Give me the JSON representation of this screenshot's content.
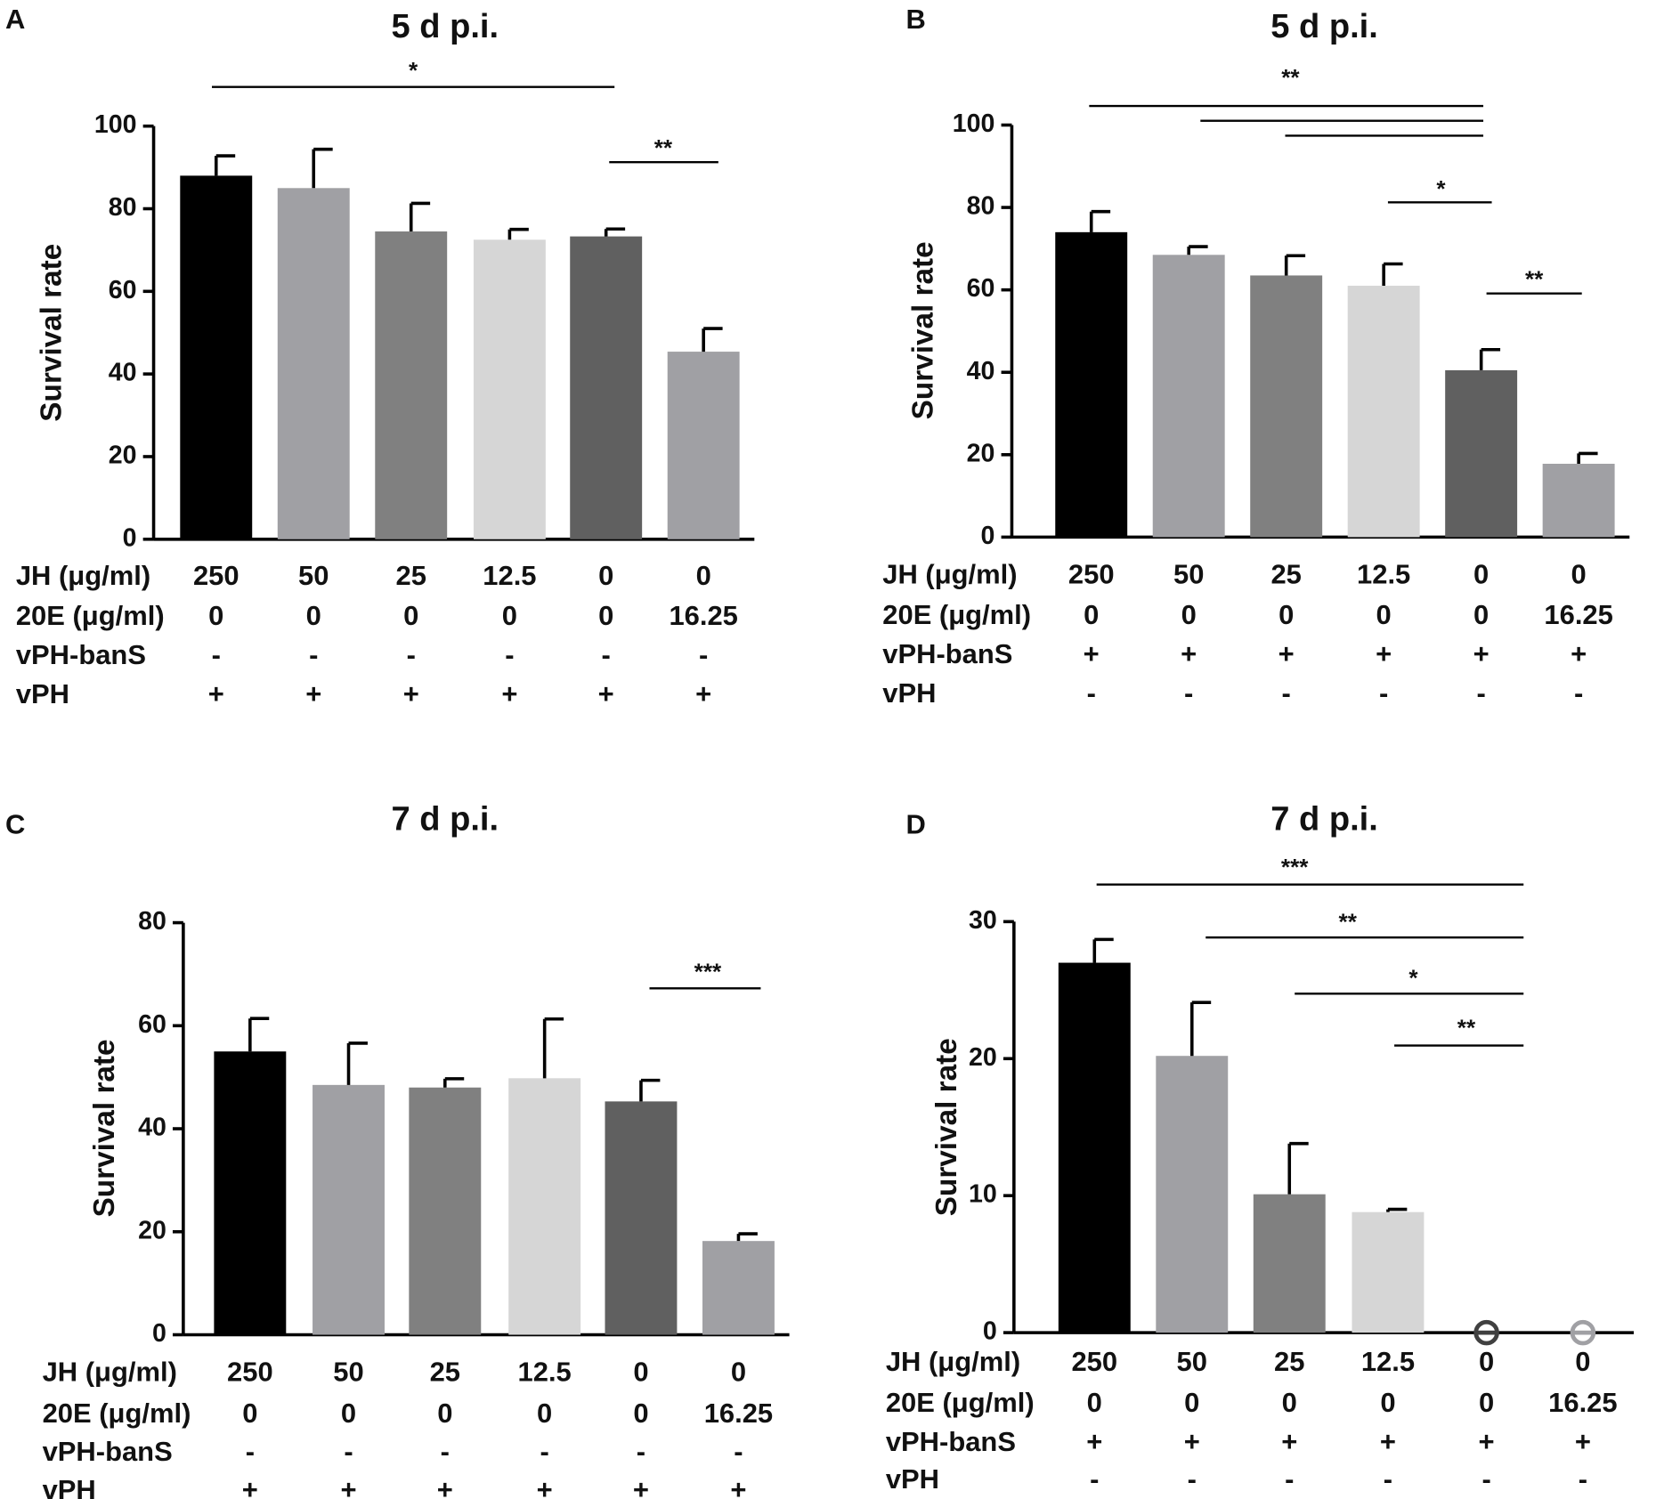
{
  "chart_data": [
    {
      "type": "bar",
      "panel": "A",
      "title": "5 d p.i.",
      "ylabel": "Survival rate",
      "ylim": [
        0,
        100
      ],
      "yticks": [
        0,
        20,
        40,
        60,
        80,
        100
      ],
      "values": [
        88,
        85,
        74.5,
        72.5,
        73.3,
        45.4
      ],
      "errors": [
        4.8,
        9.4,
        6.8,
        2.5,
        1.8,
        5.6
      ],
      "colors": [
        "#000000",
        "#a0a0a4",
        "#808080",
        "#d6d6d6",
        "#606060",
        "#a0a0a4"
      ],
      "conditions": [
        {
          "name": "JH (μg/ml)",
          "labels": [
            "250",
            "50",
            "25",
            "12.5",
            "0",
            "0"
          ]
        },
        {
          "name": "20E (μg/ml)",
          "labels": [
            "0",
            "0",
            "0",
            "0",
            "0",
            "16.25"
          ]
        },
        {
          "name": "vPH-banS",
          "labels": [
            "-",
            "-",
            "-",
            "-",
            "-",
            "-"
          ]
        },
        {
          "name": "vPH",
          "labels": [
            "+",
            "+",
            "+",
            "+",
            "+",
            "+"
          ]
        }
      ],
      "annotations": [
        "*",
        "**"
      ]
    },
    {
      "type": "bar",
      "panel": "B",
      "title": "5 d p.i.",
      "ylabel": "Survival rate",
      "ylim": [
        0,
        100
      ],
      "yticks": [
        0,
        20,
        40,
        60,
        80,
        100
      ],
      "values": [
        74,
        68.5,
        63.5,
        61,
        40.5,
        17.8
      ],
      "errors": [
        5,
        2,
        4.8,
        5.3,
        5,
        2.5
      ],
      "colors": [
        "#000000",
        "#a0a0a4",
        "#808080",
        "#d6d6d6",
        "#606060",
        "#a0a0a4"
      ],
      "conditions": [
        {
          "name": "JH (μg/ml)",
          "labels": [
            "250",
            "50",
            "25",
            "12.5",
            "0",
            "0"
          ]
        },
        {
          "name": "20E (μg/ml)",
          "labels": [
            "0",
            "0",
            "0",
            "0",
            "0",
            "16.25"
          ]
        },
        {
          "name": "vPH-banS",
          "labels": [
            "+",
            "+",
            "+",
            "+",
            "+",
            "+"
          ]
        },
        {
          "name": "vPH",
          "labels": [
            "-",
            "-",
            "-",
            "-",
            "-",
            "-"
          ]
        }
      ],
      "annotations": [
        "**",
        "*",
        "**"
      ]
    },
    {
      "type": "bar",
      "panel": "C",
      "title": "7 d p.i.",
      "ylabel": "Survival rate",
      "ylim": [
        0,
        80
      ],
      "yticks": [
        0,
        20,
        40,
        60,
        80
      ],
      "values": [
        55,
        48.5,
        48,
        49.8,
        45.3,
        18.2
      ],
      "errors": [
        6.4,
        8.1,
        1.7,
        11.5,
        4.1,
        1.4
      ],
      "colors": [
        "#000000",
        "#a0a0a4",
        "#808080",
        "#d6d6d6",
        "#606060",
        "#a0a0a4"
      ],
      "conditions": [
        {
          "name": "JH (μg/ml)",
          "labels": [
            "250",
            "50",
            "25",
            "12.5",
            "0",
            "0"
          ]
        },
        {
          "name": "20E (μg/ml)",
          "labels": [
            "0",
            "0",
            "0",
            "0",
            "0",
            "16.25"
          ]
        },
        {
          "name": "vPH-banS",
          "labels": [
            "-",
            "-",
            "-",
            "-",
            "-",
            "-"
          ]
        },
        {
          "name": "vPH",
          "labels": [
            "+",
            "+",
            "+",
            "+",
            "+",
            "+"
          ]
        }
      ],
      "annotations": [
        "***"
      ]
    },
    {
      "type": "bar",
      "panel": "D",
      "title": "7 d p.i.",
      "ylabel": "Survival rate",
      "ylim": [
        0,
        30
      ],
      "yticks": [
        0,
        10,
        20,
        30
      ],
      "values": [
        27,
        20.2,
        10.1,
        8.8,
        0,
        0
      ],
      "errors": [
        1.7,
        3.9,
        3.7,
        0.2,
        0,
        0
      ],
      "colors": [
        "#000000",
        "#a0a0a4",
        "#808080",
        "#d6d6d6",
        "#404040",
        "#a0a0a4"
      ],
      "conditions": [
        {
          "name": "JH (μg/ml)",
          "labels": [
            "250",
            "50",
            "25",
            "12.5",
            "0",
            "0"
          ]
        },
        {
          "name": "20E (μg/ml)",
          "labels": [
            "0",
            "0",
            "0",
            "0",
            "0",
            "16.25"
          ]
        },
        {
          "name": "vPH-banS",
          "labels": [
            "+",
            "+",
            "+",
            "+",
            "+",
            "+"
          ]
        },
        {
          "name": "vPH",
          "labels": [
            "-",
            "-",
            "-",
            "-",
            "-",
            "-"
          ]
        }
      ],
      "annotations": [
        "***",
        "**",
        "*",
        "**"
      ]
    }
  ]
}
